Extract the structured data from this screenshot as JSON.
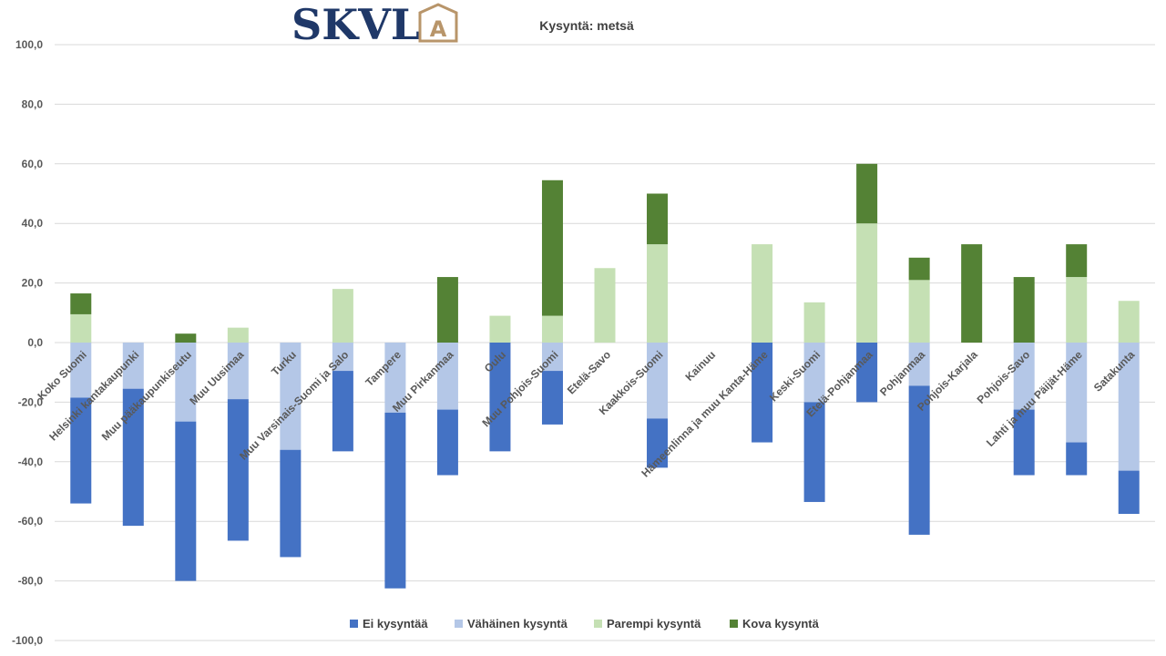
{
  "logo": {
    "text": "SKVL",
    "mark": "A",
    "color": "#1f3868",
    "mark_color": "#b8956a"
  },
  "chart_data": {
    "type": "bar",
    "stacked": true,
    "title": "Kysyntä: metsä",
    "xlabel": "",
    "ylabel": "",
    "ylim": [
      -100,
      100
    ],
    "yticks": [
      "100,0",
      "80,0",
      "60,0",
      "40,0",
      "20,0",
      "0,0",
      "-20,0",
      "-40,0",
      "-60,0",
      "-80,0",
      "-100,0"
    ],
    "grid": true,
    "legend": "bottom",
    "categories": [
      "Koko Suomi",
      "Helsinki kantakaupunki",
      "Muu pääkaupunkiseutu",
      "Muu Uusimaa",
      "Turku",
      "Muu Varsinais-Suomi ja Salo",
      "Tampere",
      "Muu Pirkanmaa",
      "Oulu",
      "Muu Pohjois-Suomi",
      "Etelä-Savo",
      "Kaakkois-Suomi",
      "Kainuu",
      "Hämeenlinna ja muu Kanta-Häme",
      "Keski-Suomi",
      "Etelä-Pohjanmaa",
      "Pohjanmaa",
      "Pohjois-Karjala",
      "Pohjois-Savo",
      "Lahti ja muu Päijät-Häme",
      "Satakunta"
    ],
    "series": [
      {
        "name": "Ei kysyntää",
        "color": "#4472c4",
        "values": [
          -35.5,
          -46,
          -53.5,
          -47.5,
          -36,
          -27,
          -59,
          -22,
          -36.5,
          -18,
          0,
          -16.5,
          0,
          -33.5,
          -33.5,
          -20,
          -50,
          0,
          -22,
          -11,
          -14.5
        ]
      },
      {
        "name": "Vähäinen kysyntä",
        "color": "#b4c7e7",
        "values": [
          -18.5,
          -15.5,
          -26.5,
          -19,
          -36,
          -9.5,
          -23.5,
          -22.5,
          0,
          -9.5,
          0,
          -25.5,
          0,
          0,
          -20,
          0,
          -14.5,
          0,
          -22.5,
          -33.5,
          -43
        ]
      },
      {
        "name": "Parempi kysyntä",
        "color": "#c5e0b4",
        "values": [
          9.5,
          0,
          0,
          5,
          0,
          18,
          0,
          0,
          9,
          9,
          25,
          33,
          0,
          33,
          13.5,
          40,
          21,
          0,
          0,
          22,
          14
        ]
      },
      {
        "name": "Kova kysyntä",
        "color": "#548235",
        "values": [
          7,
          0,
          3,
          0,
          0,
          0,
          0,
          22,
          0,
          45.5,
          0,
          17,
          0,
          0,
          0,
          20,
          7.5,
          33,
          22,
          11,
          0
        ]
      }
    ]
  }
}
